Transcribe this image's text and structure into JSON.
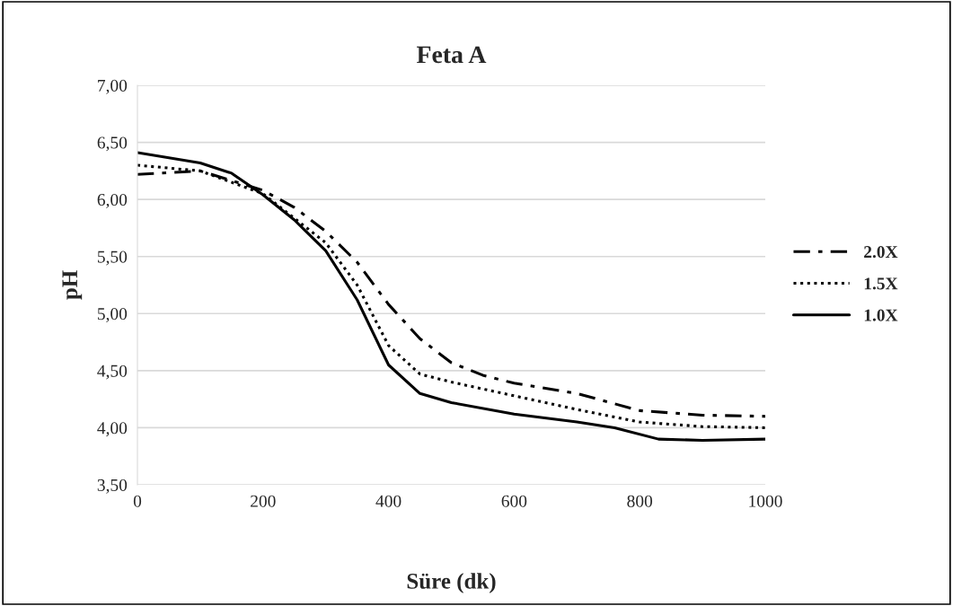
{
  "chart_data": {
    "type": "line",
    "title": "Feta A",
    "xlabel": "Süre (dk)",
    "ylabel": "pH",
    "xlim": [
      0,
      1000
    ],
    "xticks": [
      0,
      200,
      400,
      600,
      800,
      1000
    ],
    "ylim": [
      3.5,
      7.0
    ],
    "yticks": [
      {
        "value": 3.5,
        "label": "3,50"
      },
      {
        "value": 4.0,
        "label": "4,00"
      },
      {
        "value": 4.5,
        "label": "4,50"
      },
      {
        "value": 5.0,
        "label": "5,00"
      },
      {
        "value": 5.5,
        "label": "5,50"
      },
      {
        "value": 6.0,
        "label": "6,00"
      },
      {
        "value": 6.5,
        "label": "6,50"
      },
      {
        "value": 7.0,
        "label": "7,00"
      }
    ],
    "grid": "y",
    "legend": "right",
    "marker": "none",
    "series": [
      {
        "name": "2.0X",
        "color": "#000000",
        "line_style": "dashdot",
        "x": [
          0,
          100,
          200,
          250,
          300,
          350,
          400,
          450,
          500,
          550,
          600,
          700,
          800,
          900,
          1000
        ],
        "values": [
          6.22,
          6.25,
          6.08,
          5.93,
          5.72,
          5.45,
          5.08,
          4.78,
          4.57,
          4.46,
          4.39,
          4.3,
          4.15,
          4.11,
          4.1
        ]
      },
      {
        "name": "1.5X",
        "color": "#000000",
        "line_style": "dotted",
        "x": [
          0,
          100,
          200,
          300,
          350,
          400,
          450,
          500,
          600,
          700,
          800,
          900,
          1000
        ],
        "values": [
          6.3,
          6.25,
          6.05,
          5.62,
          5.25,
          4.72,
          4.47,
          4.4,
          4.28,
          4.16,
          4.05,
          4.01,
          4.0
        ]
      },
      {
        "name": "1.0X",
        "color": "#000000",
        "line_style": "solid",
        "x": [
          0,
          100,
          150,
          200,
          250,
          300,
          350,
          400,
          450,
          500,
          600,
          700,
          760,
          830,
          900,
          1000
        ],
        "values": [
          6.41,
          6.32,
          6.23,
          6.04,
          5.82,
          5.55,
          5.12,
          4.55,
          4.3,
          4.22,
          4.12,
          4.05,
          4.0,
          3.9,
          3.89,
          3.9
        ]
      }
    ]
  }
}
